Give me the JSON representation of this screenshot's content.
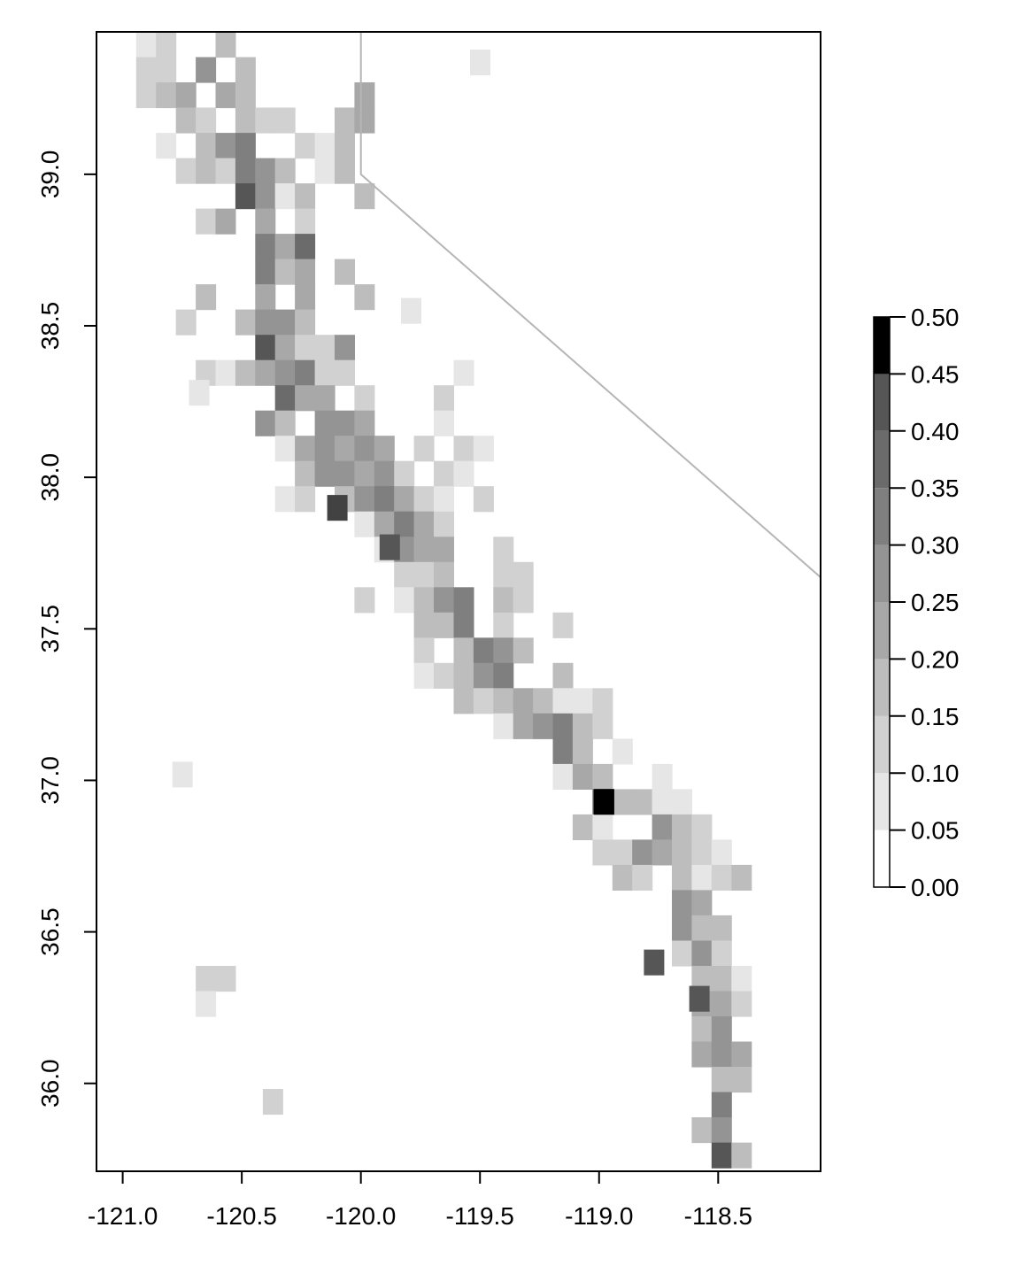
{
  "chart_data": {
    "type": "heatmap",
    "title": "",
    "xlabel": "",
    "ylabel": "",
    "xlim": [
      -121.11,
      -118.07
    ],
    "ylim": [
      35.71,
      39.47
    ],
    "x_ticks": [
      -121.0,
      -120.5,
      -120.0,
      -119.5,
      -119.0,
      -118.5
    ],
    "x_tick_labels": [
      "-121.0",
      "-120.5",
      "-120.0",
      "-119.5",
      "-119.0",
      "-118.5"
    ],
    "y_ticks": [
      36.0,
      36.5,
      37.0,
      37.5,
      38.0,
      38.5,
      39.0
    ],
    "y_tick_labels": [
      "36.0",
      "36.5",
      "37.0",
      "37.5",
      "38.0",
      "38.5",
      "39.0"
    ],
    "grid": false,
    "cell_size_deg": 0.0833,
    "color_ramp": [
      "#ffffff",
      "#e6e6e6",
      "#d1d1d1",
      "#bdbdbd",
      "#a8a8a8",
      "#949494",
      "#7f7f7f",
      "#6b6b6b",
      "#565656",
      "#424242",
      "#000000"
    ],
    "boundary_color": "#b5b5b5",
    "boundary_line": [
      [
        -120.0,
        39.47
      ],
      [
        -120.0,
        39.0
      ],
      [
        -119.9,
        38.93
      ],
      [
        -118.07,
        37.67
      ]
    ],
    "colorbar": {
      "breaks": [
        0.0,
        0.05,
        0.1,
        0.15,
        0.2,
        0.25,
        0.3,
        0.35,
        0.4,
        0.45,
        0.5
      ],
      "labels": [
        "0.00",
        "0.05",
        "0.10",
        "0.15",
        "0.20",
        "0.25",
        "0.30",
        "0.35",
        "0.40",
        "0.45",
        "0.50"
      ],
      "position": "right"
    },
    "spine": [
      [
        -120.7,
        39.45
      ],
      [
        -120.62,
        39.28
      ],
      [
        -120.5,
        39.12
      ],
      [
        -120.42,
        38.85
      ],
      [
        -120.38,
        38.55
      ],
      [
        -120.22,
        38.3
      ],
      [
        -120.1,
        38.08
      ],
      [
        -119.95,
        37.95
      ],
      [
        -119.78,
        37.8
      ],
      [
        -119.62,
        37.62
      ],
      [
        -119.48,
        37.45
      ],
      [
        -119.32,
        37.3
      ],
      [
        -119.2,
        37.18
      ],
      [
        -119.02,
        37.0
      ],
      [
        -118.85,
        36.88
      ],
      [
        -118.7,
        36.68
      ],
      [
        -118.6,
        36.48
      ],
      [
        -118.52,
        36.3
      ],
      [
        -118.5,
        36.1
      ],
      [
        -118.48,
        35.9
      ],
      [
        -118.48,
        35.72
      ]
    ],
    "blobs": [
      {
        "lon": -120.0,
        "lat": 39.1,
        "rx": 0.09,
        "ry": 0.24,
        "value": 0.22
      },
      {
        "lon": -120.12,
        "lat": 38.05,
        "rx": 0.08,
        "ry": 0.08,
        "value": 0.33
      },
      {
        "lon": -120.3,
        "lat": 38.35,
        "rx": 0.06,
        "ry": 0.06,
        "value": 0.3
      },
      {
        "lon": -119.58,
        "lat": 38.1,
        "rx": 0.2,
        "ry": 0.28,
        "value": 0.08
      },
      {
        "lon": -119.6,
        "lat": 37.58,
        "rx": 0.07,
        "ry": 0.07,
        "value": 0.32
      },
      {
        "lon": -118.95,
        "lat": 36.92,
        "rx": 0.06,
        "ry": 0.05,
        "value": 0.45
      },
      {
        "lon": -120.65,
        "lat": 36.33,
        "rx": 0.12,
        "ry": 0.08,
        "value": 0.13
      }
    ],
    "scattered_cells": [
      {
        "lon": -119.5,
        "lat": 39.37,
        "value": 0.06
      },
      {
        "lon": -120.75,
        "lat": 37.02,
        "value": 0.06
      },
      {
        "lon": -119.79,
        "lat": 38.55,
        "value": 0.06
      },
      {
        "lon": -120.68,
        "lat": 38.28,
        "value": 0.06
      },
      {
        "lon": -120.37,
        "lat": 35.94,
        "value": 0.08
      },
      {
        "lon": -118.98,
        "lat": 36.93,
        "value": 0.48
      },
      {
        "lon": -120.1,
        "lat": 37.9,
        "value": 0.46
      },
      {
        "lon": -119.88,
        "lat": 37.77,
        "value": 0.42
      },
      {
        "lon": -118.77,
        "lat": 36.4,
        "value": 0.42
      },
      {
        "lon": -118.58,
        "lat": 36.28,
        "value": 0.4
      }
    ]
  }
}
